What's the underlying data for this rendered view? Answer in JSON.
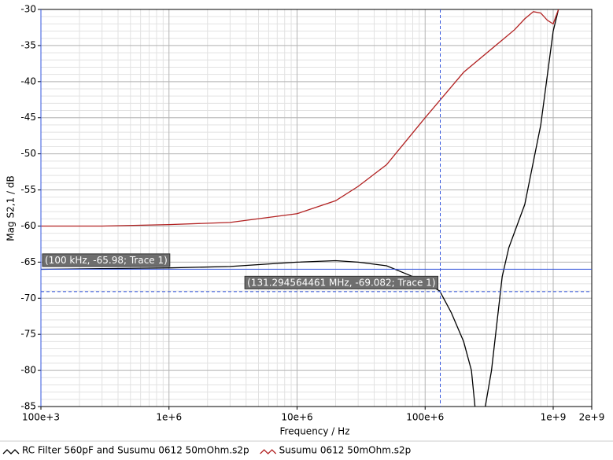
{
  "chart_data": {
    "type": "line",
    "y_label": "Mag S2,1 / dB",
    "x_label": "Frequency / Hz",
    "xlog": true,
    "xlim": [
      100000,
      2000000000
    ],
    "xticks": [
      {
        "value": 100000,
        "label": "100e+3"
      },
      {
        "value": 1000000,
        "label": "1e+6"
      },
      {
        "value": 10000000,
        "label": "10e+6"
      },
      {
        "value": 100000000,
        "label": "100e+6"
      },
      {
        "value": 1000000000,
        "label": "1e+9"
      },
      {
        "value": 2000000000,
        "label": "2e+9"
      }
    ],
    "ylim": [
      -85,
      -30
    ],
    "yticks": [
      -30,
      -35,
      -40,
      -45,
      -50,
      -55,
      -60,
      -65,
      -70,
      -75,
      -80,
      -85
    ],
    "grid": true,
    "minor_grid": true,
    "legend": "bottom",
    "series": [
      {
        "name": "RC Filter 560pF and Susumu 0612 50mOhm.s2p",
        "color": "#000000",
        "x": [
          100000,
          300000,
          1000000,
          3000000,
          10000000,
          20000000,
          30000000,
          50000000,
          80000000,
          100000000,
          130000000,
          160000000,
          200000000,
          230000000,
          245000000,
          270000000,
          295000000,
          330000000,
          400000000,
          450000000,
          600000000,
          800000000,
          1000000000,
          1100000000
        ],
        "values": [
          -66,
          -65.9,
          -65.8,
          -65.6,
          -65,
          -64.8,
          -65,
          -65.5,
          -67,
          -67.8,
          -69,
          -72,
          -76,
          -80,
          -85,
          null,
          -85,
          -80,
          -67,
          -63,
          -57,
          -46,
          -33,
          -30
        ]
      },
      {
        "name": "Susumu 0612 50mOhm.s2p",
        "color": "#b22222",
        "x": [
          100000,
          300000,
          1000000,
          3000000,
          10000000,
          20000000,
          30000000,
          50000000,
          100000000,
          200000000,
          500000000,
          600000000,
          700000000,
          800000000,
          900000000,
          1000000000,
          1100000000
        ],
        "values": [
          -60,
          -60,
          -59.8,
          -59.5,
          -58.3,
          -56.5,
          -54.5,
          -51.5,
          -45,
          -38.7,
          -32.8,
          -31.3,
          -30.3,
          -30.5,
          -31.5,
          -32,
          -30
        ]
      }
    ],
    "markers": [
      {
        "label": "(100 kHz, -65.98; Trace 1)",
        "x": 100000,
        "y": -65.98,
        "style": "solid"
      },
      {
        "label": "(131.294564461 MHz, -69.082; Trace 1)",
        "x": 131294564.461,
        "y": -69.082,
        "style": "dashed"
      }
    ]
  }
}
